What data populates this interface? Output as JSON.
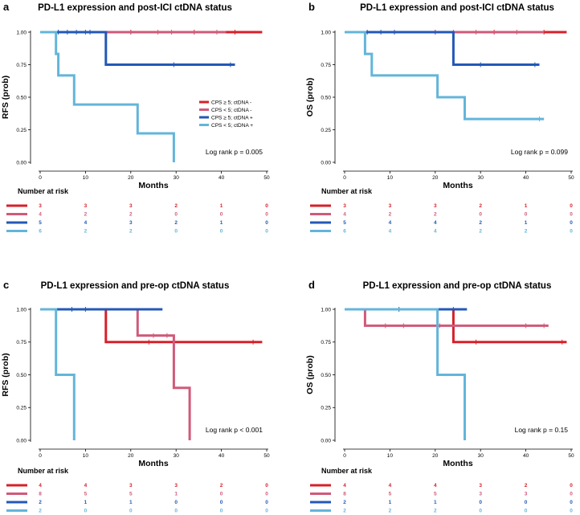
{
  "colors": {
    "series_0": "#d6202a",
    "series_1": "#d05a7a",
    "series_2": "#2358b7",
    "series_3": "#63b5da"
  },
  "chart_data": [
    {
      "id": "a",
      "type": "line",
      "panel_label": "a",
      "title": "PD-L1 expression and post-ICI ctDNA status",
      "xlabel": "Months",
      "ylabel": "RFS (prob)",
      "xlim": [
        0,
        50
      ],
      "ylim": [
        0,
        1
      ],
      "xticks": [
        "0",
        "10",
        "20",
        "30",
        "40",
        "50"
      ],
      "yticks": [
        "0.00",
        "0.25",
        "0.50",
        "0.75",
        "1.00"
      ],
      "annotation": "Log rank p = 0.005",
      "legend": {
        "placement": "right",
        "entries": [
          "CPS ≥ 5; ctDNA -",
          "CPS < 5; ctDNA -",
          "CPS ≥ 5; ctDNA +",
          "CPS < 5; ctDNA +"
        ]
      },
      "series": [
        {
          "name": "CPS ≥ 5; ctDNA -",
          "steps": [
            [
              0,
              1
            ],
            [
              49,
              1
            ]
          ],
          "censors": [
            [
              10,
              1
            ],
            [
              20,
              1
            ],
            [
              34,
              1
            ],
            [
              43,
              1
            ]
          ]
        },
        {
          "name": "CPS < 5; ctDNA -",
          "steps": [
            [
              0,
              1
            ],
            [
              41,
              1
            ]
          ],
          "censors": [
            [
              20,
              1
            ],
            [
              26,
              1
            ],
            [
              29,
              1
            ],
            [
              39,
              1
            ]
          ]
        },
        {
          "name": "CPS ≥ 5; ctDNA +",
          "steps": [
            [
              0,
              1
            ],
            [
              14.5,
              1
            ],
            [
              14.5,
              0.75
            ],
            [
              43,
              0.75
            ]
          ],
          "censors": [
            [
              4,
              1
            ],
            [
              6,
              1
            ],
            [
              8,
              1
            ],
            [
              11,
              1
            ],
            [
              29.5,
              0.75
            ],
            [
              42,
              0.75
            ]
          ]
        },
        {
          "name": "CPS < 5; ctDNA +",
          "steps": [
            [
              0,
              1
            ],
            [
              3.5,
              1
            ],
            [
              3.5,
              0.833
            ],
            [
              4,
              0.833
            ],
            [
              4,
              0.667
            ],
            [
              7.5,
              0.667
            ],
            [
              7.5,
              0.444
            ],
            [
              21.5,
              0.444
            ],
            [
              21.5,
              0.222
            ],
            [
              29.5,
              0.222
            ],
            [
              29.5,
              0
            ]
          ],
          "censors": []
        }
      ],
      "risk_table": {
        "title": "Number at risk",
        "rows": [
          [
            "3",
            "3",
            "3",
            "2",
            "1",
            "0"
          ],
          [
            "4",
            "2",
            "2",
            "0",
            "0",
            "0"
          ],
          [
            "5",
            "4",
            "3",
            "2",
            "1",
            "0"
          ],
          [
            "6",
            "2",
            "2",
            "0",
            "0",
            "0"
          ]
        ]
      }
    },
    {
      "id": "b",
      "type": "line",
      "panel_label": "b",
      "title": "PD-L1 expression and post-ICI ctDNA status",
      "xlabel": "Months",
      "ylabel": "OS (prob)",
      "xlim": [
        0,
        50
      ],
      "ylim": [
        0,
        1
      ],
      "xticks": [
        "0",
        "10",
        "20",
        "30",
        "40",
        "50"
      ],
      "yticks": [
        "0.00",
        "0.25",
        "0.50",
        "0.75",
        "1.00"
      ],
      "annotation": "Log rank p = 0.099",
      "legend": null,
      "series": [
        {
          "name": "CPS ≥ 5; ctDNA -",
          "steps": [
            [
              0,
              1
            ],
            [
              49,
              1
            ]
          ],
          "censors": [
            [
              20,
              1
            ],
            [
              33,
              1
            ],
            [
              44,
              1
            ]
          ]
        },
        {
          "name": "CPS < 5; ctDNA -",
          "steps": [
            [
              0,
              1
            ],
            [
              44,
              1
            ]
          ],
          "censors": [
            [
              24,
              1
            ],
            [
              29,
              1
            ],
            [
              38,
              1
            ]
          ]
        },
        {
          "name": "CPS ≥ 5; ctDNA +",
          "steps": [
            [
              0,
              1
            ],
            [
              24,
              1
            ],
            [
              24,
              0.75
            ],
            [
              43,
              0.75
            ]
          ],
          "censors": [
            [
              5,
              1
            ],
            [
              8,
              1
            ],
            [
              11,
              1
            ],
            [
              30,
              0.75
            ],
            [
              42,
              0.75
            ]
          ]
        },
        {
          "name": "CPS < 5; ctDNA +",
          "steps": [
            [
              0,
              1
            ],
            [
              4.5,
              1
            ],
            [
              4.5,
              0.833
            ],
            [
              6,
              0.833
            ],
            [
              6,
              0.667
            ],
            [
              20.5,
              0.667
            ],
            [
              20.5,
              0.5
            ],
            [
              26.5,
              0.5
            ],
            [
              26.5,
              0.333
            ],
            [
              44,
              0.333
            ]
          ],
          "censors": [
            [
              43,
              0.333
            ]
          ]
        }
      ],
      "risk_table": {
        "title": "Number at risk",
        "rows": [
          [
            "3",
            "3",
            "3",
            "2",
            "1",
            "0"
          ],
          [
            "4",
            "2",
            "2",
            "0",
            "0",
            "0"
          ],
          [
            "5",
            "4",
            "4",
            "2",
            "1",
            "0"
          ],
          [
            "6",
            "4",
            "4",
            "2",
            "2",
            "0"
          ]
        ]
      }
    },
    {
      "id": "c",
      "type": "line",
      "panel_label": "c",
      "title": "PD-L1 expression and pre-op ctDNA status",
      "xlabel": "Months",
      "ylabel": "RFS (prob)",
      "xlim": [
        0,
        50
      ],
      "ylim": [
        0,
        1
      ],
      "xticks": [
        "0",
        "10",
        "20",
        "30",
        "40",
        "50"
      ],
      "yticks": [
        "0.00",
        "0.25",
        "0.50",
        "0.75",
        "1.00"
      ],
      "annotation": "Log rank p < 0.001",
      "legend": null,
      "series": [
        {
          "name": "CPS ≥ 5; ctDNA -",
          "steps": [
            [
              0,
              1
            ],
            [
              14.5,
              1
            ],
            [
              14.5,
              0.75
            ],
            [
              49,
              0.75
            ]
          ],
          "censors": [
            [
              24,
              0.75
            ],
            [
              47,
              0.75
            ]
          ]
        },
        {
          "name": "CPS < 5; ctDNA -",
          "steps": [
            [
              0,
              1
            ],
            [
              21.5,
              1
            ],
            [
              21.5,
              0.8
            ],
            [
              29.5,
              0.8
            ],
            [
              29.5,
              0.4
            ],
            [
              33,
              0.4
            ],
            [
              33,
              0
            ]
          ],
          "censors": [
            [
              25,
              0.8
            ],
            [
              28,
              0.8
            ]
          ]
        },
        {
          "name": "CPS ≥ 5; ctDNA +",
          "steps": [
            [
              0,
              1
            ],
            [
              27,
              1
            ]
          ],
          "censors": [
            [
              7,
              1
            ],
            [
              10,
              1
            ]
          ]
        },
        {
          "name": "CPS < 5; ctDNA +",
          "steps": [
            [
              0,
              1
            ],
            [
              3.5,
              1
            ],
            [
              3.5,
              0.5
            ],
            [
              7.5,
              0.5
            ],
            [
              7.5,
              0
            ]
          ],
          "censors": []
        }
      ],
      "risk_table": {
        "title": "Number at risk",
        "rows": [
          [
            "4",
            "4",
            "3",
            "3",
            "2",
            "0"
          ],
          [
            "8",
            "5",
            "5",
            "1",
            "0",
            "0"
          ],
          [
            "2",
            "1",
            "1",
            "0",
            "0",
            "0"
          ],
          [
            "2",
            "0",
            "0",
            "0",
            "0",
            "0"
          ]
        ]
      }
    },
    {
      "id": "d",
      "type": "line",
      "panel_label": "d",
      "title": "PD-L1 expression and pre-op ctDNA status",
      "xlabel": "Months",
      "ylabel": "OS (prob)",
      "xlim": [
        0,
        50
      ],
      "ylim": [
        0,
        1
      ],
      "xticks": [
        "0",
        "10",
        "20",
        "30",
        "40",
        "50"
      ],
      "yticks": [
        "0.00",
        "0.25",
        "0.50",
        "0.75",
        "1.00"
      ],
      "annotation": "Log rank p = 0.15",
      "legend": null,
      "series": [
        {
          "name": "CPS ≥ 5; ctDNA -",
          "steps": [
            [
              0,
              1
            ],
            [
              24,
              1
            ],
            [
              24,
              0.75
            ],
            [
              49,
              0.75
            ]
          ],
          "censors": [
            [
              29,
              0.75
            ],
            [
              48,
              0.75
            ]
          ]
        },
        {
          "name": "CPS < 5; ctDNA -",
          "steps": [
            [
              0,
              1
            ],
            [
              4.5,
              1
            ],
            [
              4.5,
              0.875
            ],
            [
              45,
              0.875
            ]
          ],
          "censors": [
            [
              9,
              0.875
            ],
            [
              13,
              0.875
            ],
            [
              21,
              0.875
            ],
            [
              40,
              0.875
            ],
            [
              44,
              0.875
            ]
          ]
        },
        {
          "name": "CPS ≥ 5; ctDNA +",
          "steps": [
            [
              0,
              1
            ],
            [
              27,
              1
            ]
          ],
          "censors": [
            [
              12,
              1
            ],
            [
              24,
              1
            ]
          ]
        },
        {
          "name": "CPS < 5; ctDNA +",
          "steps": [
            [
              0,
              1
            ],
            [
              20.5,
              1
            ],
            [
              20.5,
              0.5
            ],
            [
              26.5,
              0.5
            ],
            [
              26.5,
              0
            ]
          ],
          "censors": []
        }
      ],
      "risk_table": {
        "title": "Number at risk",
        "rows": [
          [
            "4",
            "4",
            "4",
            "3",
            "2",
            "0"
          ],
          [
            "8",
            "5",
            "5",
            "3",
            "3",
            "0"
          ],
          [
            "2",
            "1",
            "1",
            "0",
            "0",
            "0"
          ],
          [
            "2",
            "2",
            "2",
            "0",
            "0",
            "0"
          ]
        ]
      }
    }
  ]
}
